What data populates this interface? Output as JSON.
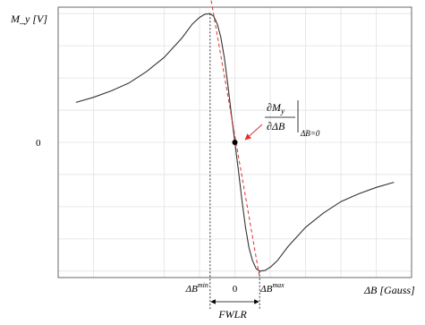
{
  "chart_data": {
    "type": "line",
    "title": "",
    "ylabel": "M_y [V]",
    "xlabel": "ΔB [Gauss]",
    "y_tick_labels": [
      {
        "value": 0,
        "text": "0"
      }
    ],
    "x_tick_labels": [
      {
        "value": -0.7,
        "text": "ΔB^min"
      },
      {
        "value": 0,
        "text": "0"
      },
      {
        "value": 0.7,
        "text": "ΔB^max"
      }
    ],
    "xlim": [
      -5,
      5
    ],
    "ylim": [
      -1.05,
      1.05
    ],
    "grid": true,
    "series": [
      {
        "style": "solid",
        "color": "#333333",
        "x": [
          -4.5,
          -4,
          -3.5,
          -3,
          -2.5,
          -2,
          -1.5,
          -1.2,
          -1,
          -0.85,
          -0.7,
          -0.6,
          -0.5,
          -0.4,
          -0.3,
          -0.2,
          -0.1,
          0,
          0.1,
          0.2,
          0.3,
          0.4,
          0.5,
          0.6,
          0.7,
          0.85,
          1,
          1.2,
          1.5,
          2,
          2.5,
          3,
          3.5,
          4,
          4.5
        ],
        "y": [
          0.31,
          0.35,
          0.4,
          0.46,
          0.55,
          0.66,
          0.81,
          0.92,
          0.97,
          0.995,
          1.0,
          0.98,
          0.92,
          0.82,
          0.66,
          0.45,
          0.22,
          0,
          -0.22,
          -0.45,
          -0.66,
          -0.82,
          -0.92,
          -0.98,
          -1.0,
          -0.995,
          -0.97,
          -0.92,
          -0.81,
          -0.66,
          -0.55,
          -0.46,
          -0.4,
          -0.35,
          -0.31
        ]
      },
      {
        "style": "dashed",
        "color": "#e03030",
        "x": [
          -0.7,
          0.7
        ],
        "y": [
          1.15,
          -1.05
        ]
      }
    ],
    "annotations": {
      "derivative_numerator": "∂M",
      "derivative_numerator_sub": "y",
      "derivative_denominator": "∂ΔB",
      "evaluated_at": "ΔB=0",
      "point": {
        "x": 0,
        "y": 0
      },
      "span_label": "FWLR",
      "span": [
        -0.7,
        0.7
      ]
    }
  }
}
